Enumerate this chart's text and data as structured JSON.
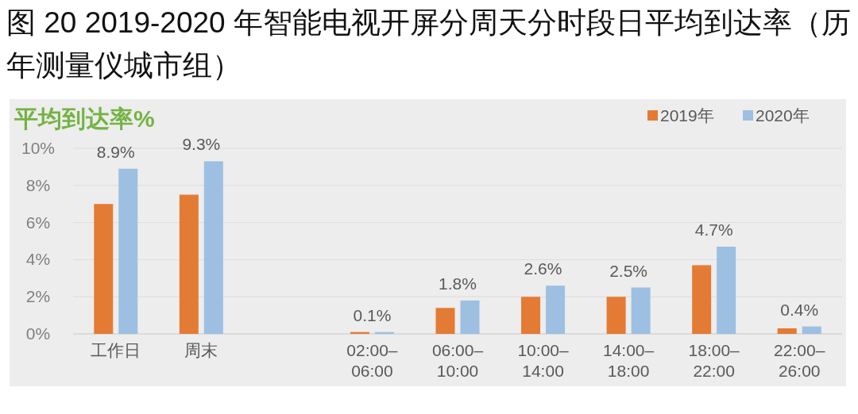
{
  "chart_data": {
    "type": "bar",
    "title": "图 20 2019-2020 年智能电视开屏分周天分时段日平均到达率（历年测量仪城市组）",
    "ylabel": "平均到达率%",
    "categories": [
      "工作日",
      "周末",
      null,
      "02:00–\n06:00",
      "06:00–\n10:00",
      "10:00–\n14:00",
      "14:00–\n18:00",
      "18:00–\n22:00",
      "22:00–\n26:00"
    ],
    "series": [
      {
        "name": "2019年",
        "color": "#e47b34",
        "values": [
          7.0,
          7.5,
          null,
          0.1,
          1.4,
          2.0,
          2.0,
          3.7,
          0.3
        ]
      },
      {
        "name": "2020年",
        "color": "#9dbfe2",
        "values": [
          8.9,
          9.3,
          null,
          0.1,
          1.8,
          2.6,
          2.5,
          4.7,
          0.4
        ],
        "value_labels": [
          "8.9%",
          "9.3%",
          null,
          "0.1%",
          "1.8%",
          "2.6%",
          "2.5%",
          "4.7%",
          "0.4%"
        ]
      }
    ],
    "ylim": [
      0,
      10
    ],
    "yticks": [
      {
        "value": 0,
        "label": "0%"
      },
      {
        "value": 2,
        "label": "2%"
      },
      {
        "value": 4,
        "label": "4%"
      },
      {
        "value": 6,
        "label": "6%"
      },
      {
        "value": 8,
        "label": "8%"
      },
      {
        "value": 10,
        "label": "10%"
      }
    ],
    "grid": "y",
    "legend": "top right"
  }
}
